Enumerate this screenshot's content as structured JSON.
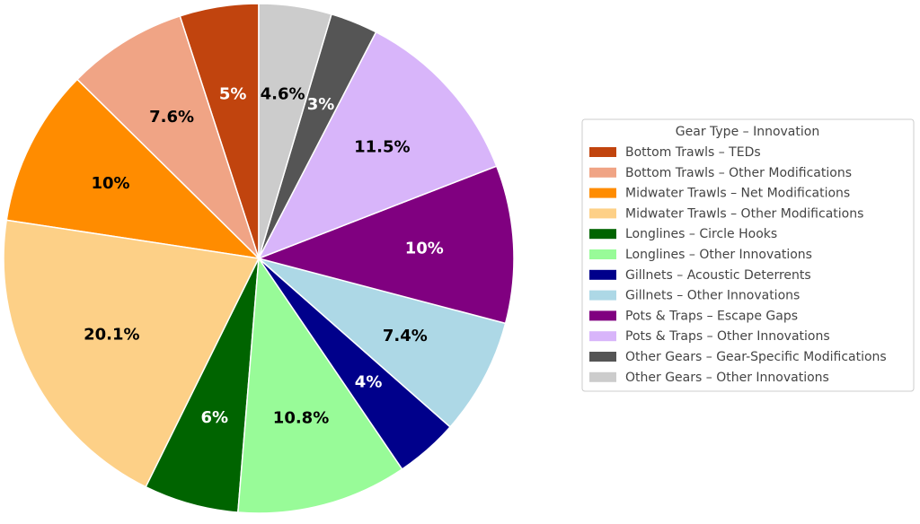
{
  "chart_data": {
    "type": "pie",
    "legend_title": "Gear Type – Innovation",
    "categories": [
      "Bottom Trawls – TEDs",
      "Bottom Trawls – Other Modifications",
      "Midwater Trawls – Net Modifications",
      "Midwater Trawls – Other Modifications",
      "Longlines – Circle Hooks",
      "Longlines – Other Innovations",
      "Gillnets – Acoustic Deterrents",
      "Gillnets – Other Innovations",
      "Pots & Traps – Escape Gaps",
      "Pots & Traps – Other Innovations",
      "Other Gears – Gear-Specific Modifications",
      "Other Gears – Other Innovations"
    ],
    "values": [
      5,
      7.6,
      10,
      20.1,
      6,
      10.8,
      4,
      7.4,
      10,
      11.5,
      3,
      4.6
    ],
    "value_labels": [
      "5%",
      "7.6%",
      "10%",
      "20.1%",
      "6%",
      "10.8%",
      "4%",
      "7.4%",
      "10%",
      "11.5%",
      "3%",
      "4.6%"
    ],
    "colors": [
      "#c1440e",
      "#f0a485",
      "#ff8c00",
      "#fdd087",
      "#006400",
      "#98fb98",
      "#00008b",
      "#add8e6",
      "#800080",
      "#d8b5fa",
      "#555555",
      "#cccccc"
    ],
    "legend": "right"
  }
}
